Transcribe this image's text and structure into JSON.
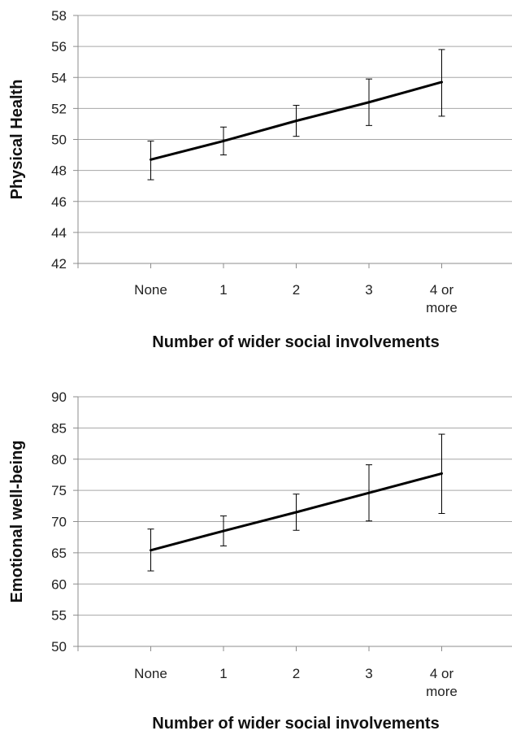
{
  "chart_data": [
    {
      "type": "line",
      "title": "",
      "categories": [
        "None",
        "1",
        "2",
        "3",
        "4 or more"
      ],
      "category_lines": [
        [
          "None"
        ],
        [
          "1"
        ],
        [
          "2"
        ],
        [
          "3"
        ],
        [
          "4 or",
          "more"
        ]
      ],
      "values": [
        48.7,
        49.9,
        51.2,
        52.4,
        53.7
      ],
      "error_low": [
        47.4,
        49.0,
        50.2,
        50.9,
        51.5
      ],
      "error_high": [
        49.9,
        50.8,
        52.2,
        53.9,
        55.8
      ],
      "xlabel": "Number of wider social involvements",
      "ylabel": "Physical Health",
      "ylim": [
        42,
        58
      ],
      "yticks": [
        42,
        44,
        46,
        48,
        50,
        52,
        54,
        56,
        58
      ],
      "grid": true,
      "legend": "none"
    },
    {
      "type": "line",
      "title": "",
      "categories": [
        "None",
        "1",
        "2",
        "3",
        "4 or more"
      ],
      "category_lines": [
        [
          "None"
        ],
        [
          "1"
        ],
        [
          "2"
        ],
        [
          "3"
        ],
        [
          "4 or",
          "more"
        ]
      ],
      "values": [
        65.4,
        68.5,
        71.5,
        74.6,
        77.7
      ],
      "error_low": [
        62.1,
        66.1,
        68.6,
        70.1,
        71.3
      ],
      "error_high": [
        68.8,
        70.9,
        74.4,
        79.1,
        84.0
      ],
      "xlabel": "Number of wider social involvements",
      "ylabel": "Emotional well-being",
      "ylim": [
        50,
        90
      ],
      "yticks": [
        50,
        55,
        60,
        65,
        70,
        75,
        80,
        85,
        90
      ],
      "grid": true,
      "legend": "none"
    }
  ],
  "colors": {
    "line": "#000000",
    "grid": "#a6a6a6",
    "axis": "#8c8c8c",
    "error_bar": "#000000"
  }
}
